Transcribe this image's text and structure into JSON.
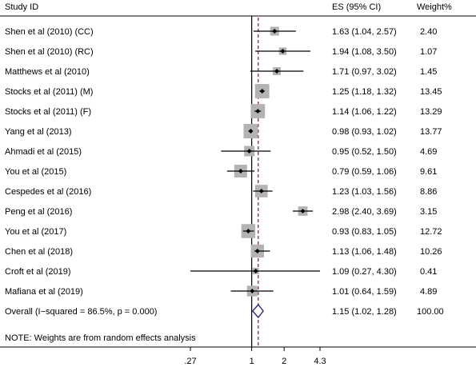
{
  "chart_data": {
    "type": "forest",
    "headers": {
      "study": "Study ID",
      "es": "ES (95% CI)",
      "weight": "Weight%"
    },
    "studies": [
      {
        "name": "Shen et al (2010) (CC)",
        "es": 1.63,
        "lo": 1.04,
        "hi": 2.57,
        "es_text": "1.63 (1.04, 2.57)",
        "weight": 2.4,
        "weight_text": "2.40"
      },
      {
        "name": "Shen et al (2010)  (RC)",
        "es": 1.94,
        "lo": 1.08,
        "hi": 3.5,
        "es_text": "1.94 (1.08, 3.50)",
        "weight": 1.07,
        "weight_text": "1.07"
      },
      {
        "name": "Matthews et al (2010)",
        "es": 1.71,
        "lo": 0.97,
        "hi": 3.02,
        "es_text": "1.71 (0.97, 3.02)",
        "weight": 1.45,
        "weight_text": "1.45"
      },
      {
        "name": "Stocks et al (2011)  (M)",
        "es": 1.25,
        "lo": 1.18,
        "hi": 1.32,
        "es_text": "1.25 (1.18, 1.32)",
        "weight": 13.45,
        "weight_text": "13.45"
      },
      {
        "name": "Stocks et al (2011)  (F)",
        "es": 1.14,
        "lo": 1.06,
        "hi": 1.22,
        "es_text": "1.14 (1.06, 1.22)",
        "weight": 13.29,
        "weight_text": "13.29"
      },
      {
        "name": "Yang et al (2013)",
        "es": 0.98,
        "lo": 0.93,
        "hi": 1.02,
        "es_text": "0.98 (0.93, 1.02)",
        "weight": 13.77,
        "weight_text": "13.77"
      },
      {
        "name": "Ahmadi et al (2015)",
        "es": 0.95,
        "lo": 0.52,
        "hi": 1.5,
        "es_text": "0.95 (0.52, 1.50)",
        "weight": 4.69,
        "weight_text": "4.69"
      },
      {
        "name": "You et al (2015)",
        "es": 0.79,
        "lo": 0.59,
        "hi": 1.06,
        "es_text": "0.79 (0.59, 1.06)",
        "weight": 9.61,
        "weight_text": "9.61"
      },
      {
        "name": "Cespedes et al (2016)",
        "es": 1.23,
        "lo": 1.03,
        "hi": 1.56,
        "es_text": "1.23 (1.03, 1.56)",
        "weight": 8.86,
        "weight_text": "8.86"
      },
      {
        "name": "Peng et al (2016)",
        "es": 2.98,
        "lo": 2.4,
        "hi": 3.69,
        "es_text": "2.98 (2.40, 3.69)",
        "weight": 3.15,
        "weight_text": "3.15"
      },
      {
        "name": "You et al (2017)",
        "es": 0.93,
        "lo": 0.83,
        "hi": 1.05,
        "es_text": "0.93 (0.83, 1.05)",
        "weight": 12.72,
        "weight_text": "12.72"
      },
      {
        "name": "Chen et al (2018)",
        "es": 1.13,
        "lo": 1.06,
        "hi": 1.48,
        "es_text": "1.13 (1.06, 1.48)",
        "weight": 10.26,
        "weight_text": "10.26"
      },
      {
        "name": "Croft et al (2019)",
        "es": 1.09,
        "lo": 0.27,
        "hi": 4.3,
        "es_text": "1.09 (0.27, 4.30)",
        "weight": 0.41,
        "weight_text": "0.41"
      },
      {
        "name": "Mafiana et al (2019)",
        "es": 1.01,
        "lo": 0.64,
        "hi": 1.59,
        "es_text": "1.01 (0.64, 1.59)",
        "weight": 4.89,
        "weight_text": "4.89"
      }
    ],
    "overall": {
      "name": "Overall  (I−squared = 86.5%, p = 0.000)",
      "es": 1.15,
      "lo": 1.02,
      "hi": 1.28,
      "es_text": "1.15 (1.02, 1.28)",
      "weight_text": "100.00"
    },
    "note": "NOTE: Weights are from random effects analysis",
    "x_ticks": [
      {
        "value": 0.27,
        "label": ".27"
      },
      {
        "value": 1,
        "label": "1"
      },
      {
        "value": 2,
        "label": "2"
      },
      {
        "value": 4.3,
        "label": "4.3"
      }
    ],
    "null_value": 1,
    "x_scale": "log",
    "colors": {
      "box": "#b3b3b3",
      "ci": "#000000",
      "overall_line": "#8b1a1a",
      "diamond": "#2a2a7a"
    }
  }
}
